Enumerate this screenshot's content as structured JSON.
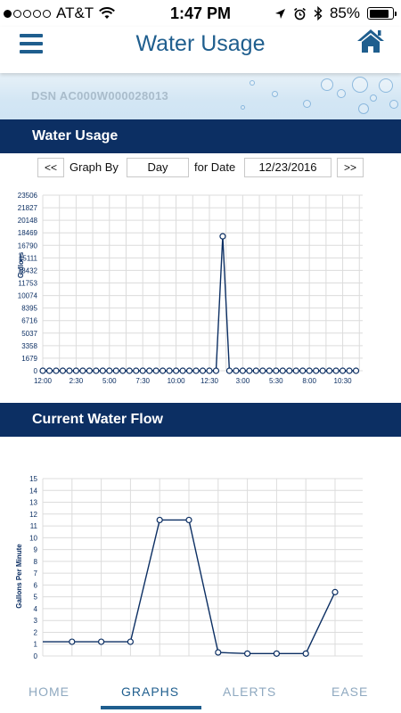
{
  "status": {
    "carrier": "AT&T",
    "time": "1:47 PM",
    "battery": "85%",
    "battery_level": 0.85
  },
  "header": {
    "title": "Water Usage"
  },
  "dsn": {
    "text": "DSN AC000W000028013"
  },
  "usage_section": {
    "title": "Water Usage",
    "prev_label": "<<",
    "graph_by_label": "Graph By",
    "graph_by_value": "Day",
    "for_date_label": "for Date",
    "date_value": "12/23/2016",
    "next_label": ">>"
  },
  "flow_section": {
    "title": "Current Water Flow"
  },
  "tabs": [
    {
      "label": "HOME"
    },
    {
      "label": "GRAPHS"
    },
    {
      "label": "ALERTS"
    },
    {
      "label": "EASE"
    }
  ],
  "colors": {
    "accent": "#1f5e8e",
    "section": "#0c2f63",
    "line": "#0c2f63"
  },
  "chart_data": [
    {
      "type": "line",
      "ylabel": "Gallons",
      "yticks": [
        0,
        1679,
        3358,
        5037,
        6716,
        8395,
        10074,
        11753,
        13432,
        15111,
        16790,
        18469,
        20148,
        21827,
        23506
      ],
      "ylim": [
        0,
        23506
      ],
      "xlim": [
        0,
        24
      ],
      "xtick_labels": [
        "12:00",
        "2:30",
        "5:00",
        "7:30",
        "10:00",
        "12:30",
        "3:00",
        "5:30",
        "8:00",
        "10:30"
      ],
      "xtick_positions": [
        0,
        2.5,
        5,
        7.5,
        10,
        12.5,
        15,
        17.5,
        20,
        22.5
      ],
      "x": [
        0,
        0.5,
        1,
        1.5,
        2,
        2.5,
        3,
        3.5,
        4,
        4.5,
        5,
        5.5,
        6,
        6.5,
        7,
        7.5,
        8,
        8.5,
        9,
        9.5,
        10,
        10.5,
        11,
        11.5,
        12,
        12.5,
        13,
        13.5,
        14,
        14.5,
        15,
        15.5,
        16,
        16.5,
        17,
        17.5,
        18,
        18.5,
        19,
        19.5,
        20,
        20.5,
        21,
        21.5,
        22,
        22.5,
        23,
        23.5
      ],
      "values": [
        0,
        0,
        0,
        0,
        0,
        0,
        0,
        0,
        0,
        0,
        0,
        0,
        0,
        0,
        0,
        0,
        0,
        0,
        0,
        0,
        0,
        0,
        0,
        0,
        0,
        0,
        0,
        18000,
        0,
        0,
        0,
        0,
        0,
        0,
        0,
        0,
        0,
        0,
        0,
        0,
        0,
        0,
        0,
        0,
        0,
        0,
        0,
        0
      ],
      "grid": true
    },
    {
      "type": "line",
      "ylabel": "Gallons Per Minute",
      "yticks": [
        0,
        1,
        2,
        3,
        4,
        5,
        6,
        7,
        8,
        9,
        10,
        11,
        12,
        13,
        14,
        15
      ],
      "ylim": [
        0,
        15
      ],
      "values": [
        1.2,
        1.2,
        1.2,
        1.2,
        11.5,
        11.5,
        0.3,
        0.2,
        0.2,
        0.2,
        5.4
      ],
      "grid": true
    }
  ]
}
